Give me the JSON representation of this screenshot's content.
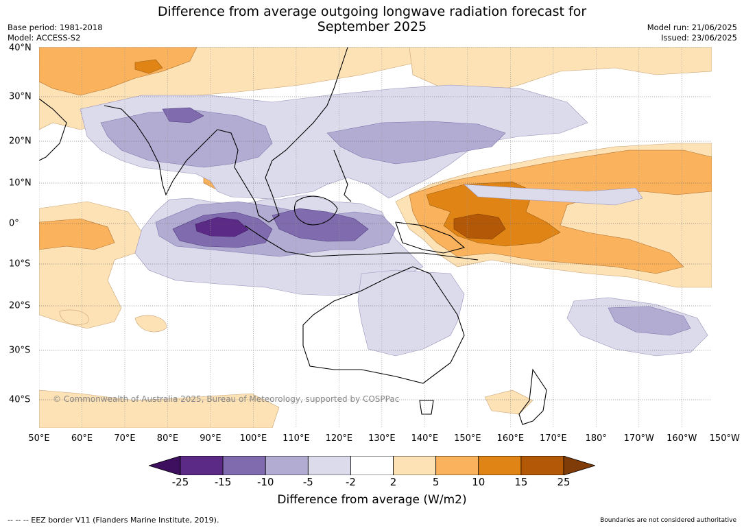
{
  "title_line1": "Difference from average outgoing longwave radiation forecast for",
  "title_line2": "September 2025",
  "base_period": "Base period: 1981-2018",
  "model": "Model: ACCESS-S2",
  "model_run": "Model run: 21/06/2025",
  "issued": "Issued: 23/06/2025",
  "copyright": "© Commonwealth of Australia 2025, Bureau of Meteorology, supported by COSPPac",
  "footer_left": "--  --  -- EEZ border V11 (Flanders Marine Institute, 2019).",
  "footer_right": "Boundaries are not considered authoritative",
  "lon_labels": [
    "50°E",
    "60°E",
    "70°E",
    "80°E",
    "90°E",
    "100°E",
    "110°E",
    "120°E",
    "130°E",
    "140°E",
    "150°E",
    "160°E",
    "170°E",
    "180°",
    "170°W",
    "160°W",
    "150°W"
  ],
  "lat_labels": [
    "40°N",
    "30°N",
    "20°N",
    "10°N",
    "0°",
    "10°S",
    "20°S",
    "30°S",
    "40°S"
  ],
  "colorbar": {
    "title": "Difference from average (W/m2)",
    "ticks": [
      "-25",
      "-15",
      "-10",
      "-5",
      "-2",
      "2",
      "5",
      "10",
      "15",
      "25"
    ],
    "colors": [
      "#3d0f5e",
      "#5b2a86",
      "#7f6bad",
      "#b2acd3",
      "#dcdbec",
      "#ffffff",
      "#fde2b6",
      "#fab35c",
      "#e08515",
      "#b35806",
      "#7f3b08"
    ]
  }
}
